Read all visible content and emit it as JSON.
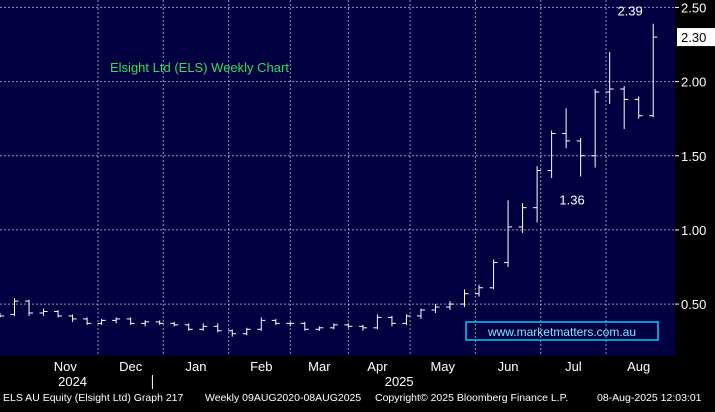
{
  "chart_data": {
    "type": "ohlc",
    "title": "Elsight Ltd (ELS) Weekly Chart",
    "watermark": "www.marketmatters.com.au",
    "ylim": [
      0.15,
      2.55
    ],
    "yticks": [
      0.5,
      1.0,
      1.5,
      2.0,
      2.5
    ],
    "ytick_labels": [
      "0.50",
      "1.00",
      "1.50",
      "2.00",
      "2.50"
    ],
    "last_price": 2.3,
    "last_price_label": "2.30",
    "months": [
      {
        "label": "Nov",
        "week": 4.5
      },
      {
        "label": "Dec",
        "week": 9
      },
      {
        "label": "Jan",
        "week": 13.5
      },
      {
        "label": "Feb",
        "week": 18
      },
      {
        "label": "Mar",
        "week": 22
      },
      {
        "label": "Apr",
        "week": 26
      },
      {
        "label": "May",
        "week": 30.5
      },
      {
        "label": "Jun",
        "week": 35
      },
      {
        "label": "Jul",
        "week": 39.5
      },
      {
        "label": "Aug",
        "week": 44
      }
    ],
    "years": [
      {
        "label": "2024",
        "week": 5
      },
      {
        "label": "2025",
        "week": 27.5
      }
    ],
    "year_divider_week": 10.5,
    "week_range": [
      0,
      46.5
    ],
    "annotations": [
      {
        "label": "2.39",
        "week": 43.5,
        "value": 2.39,
        "anchor": "above"
      },
      {
        "label": "1.36",
        "week": 39.5,
        "value": 1.36,
        "anchor": "below"
      }
    ],
    "ohlc": [
      {
        "w": 0,
        "o": 0.43,
        "h": 0.44,
        "l": 0.41,
        "c": 0.42
      },
      {
        "w": 1,
        "o": 0.43,
        "h": 0.54,
        "l": 0.42,
        "c": 0.52
      },
      {
        "w": 2,
        "o": 0.52,
        "h": 0.53,
        "l": 0.42,
        "c": 0.44
      },
      {
        "w": 3,
        "o": 0.44,
        "h": 0.47,
        "l": 0.42,
        "c": 0.45
      },
      {
        "w": 4,
        "o": 0.45,
        "h": 0.46,
        "l": 0.41,
        "c": 0.42
      },
      {
        "w": 5,
        "o": 0.42,
        "h": 0.43,
        "l": 0.38,
        "c": 0.4
      },
      {
        "w": 6,
        "o": 0.4,
        "h": 0.41,
        "l": 0.36,
        "c": 0.37
      },
      {
        "w": 7,
        "o": 0.37,
        "h": 0.4,
        "l": 0.36,
        "c": 0.39
      },
      {
        "w": 8,
        "o": 0.39,
        "h": 0.41,
        "l": 0.37,
        "c": 0.4
      },
      {
        "w": 9,
        "o": 0.4,
        "h": 0.41,
        "l": 0.36,
        "c": 0.37
      },
      {
        "w": 10,
        "o": 0.37,
        "h": 0.39,
        "l": 0.35,
        "c": 0.38
      },
      {
        "w": 11,
        "o": 0.38,
        "h": 0.39,
        "l": 0.36,
        "c": 0.37
      },
      {
        "w": 12,
        "o": 0.37,
        "h": 0.38,
        "l": 0.35,
        "c": 0.36
      },
      {
        "w": 13,
        "o": 0.36,
        "h": 0.37,
        "l": 0.32,
        "c": 0.33
      },
      {
        "w": 14,
        "o": 0.33,
        "h": 0.37,
        "l": 0.32,
        "c": 0.35
      },
      {
        "w": 15,
        "o": 0.35,
        "h": 0.37,
        "l": 0.31,
        "c": 0.32
      },
      {
        "w": 16,
        "o": 0.32,
        "h": 0.33,
        "l": 0.28,
        "c": 0.3
      },
      {
        "w": 17,
        "o": 0.3,
        "h": 0.34,
        "l": 0.29,
        "c": 0.33
      },
      {
        "w": 18,
        "o": 0.33,
        "h": 0.41,
        "l": 0.32,
        "c": 0.39
      },
      {
        "w": 19,
        "o": 0.39,
        "h": 0.4,
        "l": 0.36,
        "c": 0.37
      },
      {
        "w": 20,
        "o": 0.37,
        "h": 0.38,
        "l": 0.35,
        "c": 0.37
      },
      {
        "w": 21,
        "o": 0.37,
        "h": 0.38,
        "l": 0.32,
        "c": 0.33
      },
      {
        "w": 22,
        "o": 0.33,
        "h": 0.35,
        "l": 0.32,
        "c": 0.34
      },
      {
        "w": 23,
        "o": 0.34,
        "h": 0.37,
        "l": 0.33,
        "c": 0.36
      },
      {
        "w": 24,
        "o": 0.36,
        "h": 0.37,
        "l": 0.34,
        "c": 0.35
      },
      {
        "w": 25,
        "o": 0.35,
        "h": 0.36,
        "l": 0.32,
        "c": 0.34
      },
      {
        "w": 26,
        "o": 0.34,
        "h": 0.43,
        "l": 0.33,
        "c": 0.41
      },
      {
        "w": 27,
        "o": 0.41,
        "h": 0.42,
        "l": 0.35,
        "c": 0.37
      },
      {
        "w": 28,
        "o": 0.37,
        "h": 0.43,
        "l": 0.36,
        "c": 0.42
      },
      {
        "w": 29,
        "o": 0.42,
        "h": 0.47,
        "l": 0.4,
        "c": 0.46
      },
      {
        "w": 30,
        "o": 0.46,
        "h": 0.5,
        "l": 0.44,
        "c": 0.48
      },
      {
        "w": 31,
        "o": 0.48,
        "h": 0.52,
        "l": 0.46,
        "c": 0.5
      },
      {
        "w": 32,
        "o": 0.5,
        "h": 0.6,
        "l": 0.48,
        "c": 0.57
      },
      {
        "w": 33,
        "o": 0.57,
        "h": 0.63,
        "l": 0.55,
        "c": 0.61
      },
      {
        "w": 34,
        "o": 0.61,
        "h": 0.8,
        "l": 0.6,
        "c": 0.78
      },
      {
        "w": 35,
        "o": 0.78,
        "h": 1.2,
        "l": 0.75,
        "c": 1.02
      },
      {
        "w": 36,
        "o": 1.02,
        "h": 1.18,
        "l": 0.98,
        "c": 1.15
      },
      {
        "w": 37,
        "o": 1.15,
        "h": 1.43,
        "l": 1.05,
        "c": 1.4
      },
      {
        "w": 38,
        "o": 1.4,
        "h": 1.67,
        "l": 1.35,
        "c": 1.65
      },
      {
        "w": 39,
        "o": 1.65,
        "h": 1.82,
        "l": 1.55,
        "c": 1.6
      },
      {
        "w": 40,
        "o": 1.6,
        "h": 1.62,
        "l": 1.36,
        "c": 1.5
      },
      {
        "w": 41,
        "o": 1.5,
        "h": 1.95,
        "l": 1.42,
        "c": 1.93
      },
      {
        "w": 42,
        "o": 1.93,
        "h": 2.2,
        "l": 1.85,
        "c": 1.95
      },
      {
        "w": 43,
        "o": 1.95,
        "h": 1.97,
        "l": 1.68,
        "c": 1.88
      },
      {
        "w": 44,
        "o": 1.88,
        "h": 1.9,
        "l": 1.75,
        "c": 1.77
      },
      {
        "w": 45,
        "o": 1.77,
        "h": 2.39,
        "l": 1.76,
        "c": 2.3
      }
    ]
  },
  "footer": {
    "security": "ELS AU Equity (Elsight Ltd) Graph 217",
    "range": "Weekly 09AUG2020-08AUG2025",
    "copyright": "Copyright© 2025 Bloomberg Finance L.P.",
    "timestamp": "08-Aug-2025 12:03:01"
  },
  "colors": {
    "plot_bg": "#000040",
    "grid": "#c8c8d8",
    "bars": "#ffffff",
    "title": "#33dd55",
    "watermark_border": "#00ccff",
    "watermark_text": "#7fe6ff",
    "price_tag_bg": "#ffffff",
    "price_tag_text": "#000000"
  }
}
